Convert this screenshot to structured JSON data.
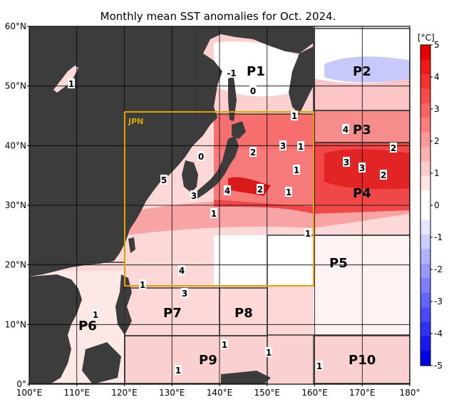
{
  "title": "Monthly mean SST anomalies for Oct. 2024.",
  "colorbar": {
    "unit": "[°C]",
    "ticks": [
      "5",
      "4",
      "3",
      "2",
      "1",
      "0",
      "-1",
      "-2",
      "-3",
      "-4",
      "-5"
    ],
    "colors": [
      "#e80000",
      "#f01818",
      "#f43030",
      "#f64a4a",
      "#f86464",
      "#fa7e7e",
      "#fb9898",
      "#fcb2b2",
      "#fdcccc",
      "#fee6e6",
      "#ffffff",
      "#ffffff",
      "#e6e6fe",
      "#ccccfd",
      "#b2b2fc",
      "#9898fb",
      "#7e7efa",
      "#6464f8",
      "#4a4af6",
      "#3030f4",
      "#1818f0",
      "#0000e8"
    ]
  },
  "axes": {
    "y_labels": [
      "60°N",
      "50°N",
      "40°N",
      "30°N",
      "20°N",
      "10°N",
      "0°"
    ],
    "x_labels": [
      "100°E",
      "110°E",
      "120°E",
      "130°E",
      "140°E",
      "150°E",
      "160°E",
      "170°E",
      "180°"
    ]
  },
  "regions": [
    {
      "name": "P1"
    },
    {
      "name": "P2"
    },
    {
      "name": "P3"
    },
    {
      "name": "P4"
    },
    {
      "name": "P5"
    },
    {
      "name": "P6"
    },
    {
      "name": "P7"
    },
    {
      "name": "P8"
    },
    {
      "name": "P9"
    },
    {
      "name": "P10"
    }
  ],
  "jpn_label": "JPN",
  "contour_labels": [
    "-1",
    "0",
    "1",
    "0",
    "2",
    "3",
    "1",
    "1",
    "2",
    "3",
    "3",
    "2",
    "4",
    "2",
    "3",
    "4",
    "5",
    "4",
    "3",
    "1",
    "1",
    "1",
    "1",
    "1",
    "1",
    "1",
    "1",
    "1",
    "1"
  ],
  "colors": {
    "land": "#3c3c3c",
    "box": "#e0a000",
    "grid": "#000000",
    "region_box": "#333333"
  }
}
